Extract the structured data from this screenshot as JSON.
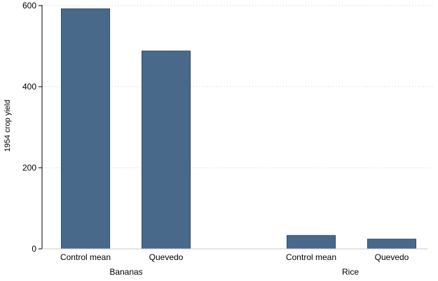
{
  "chart_data": {
    "type": "bar",
    "ylabel": "1954 crop yield",
    "ylim": [
      0,
      600
    ],
    "yticks": [
      0,
      200,
      400,
      600
    ],
    "grid": "horizontal dotted",
    "bar_color": "#48698a",
    "groups": [
      {
        "name": "Bananas",
        "categories": [
          "Control mean",
          "Quevedo"
        ],
        "values": [
          592,
          488
        ]
      },
      {
        "name": "Rice",
        "categories": [
          "Control mean",
          "Quevedo"
        ],
        "values": [
          33,
          24
        ]
      }
    ]
  }
}
